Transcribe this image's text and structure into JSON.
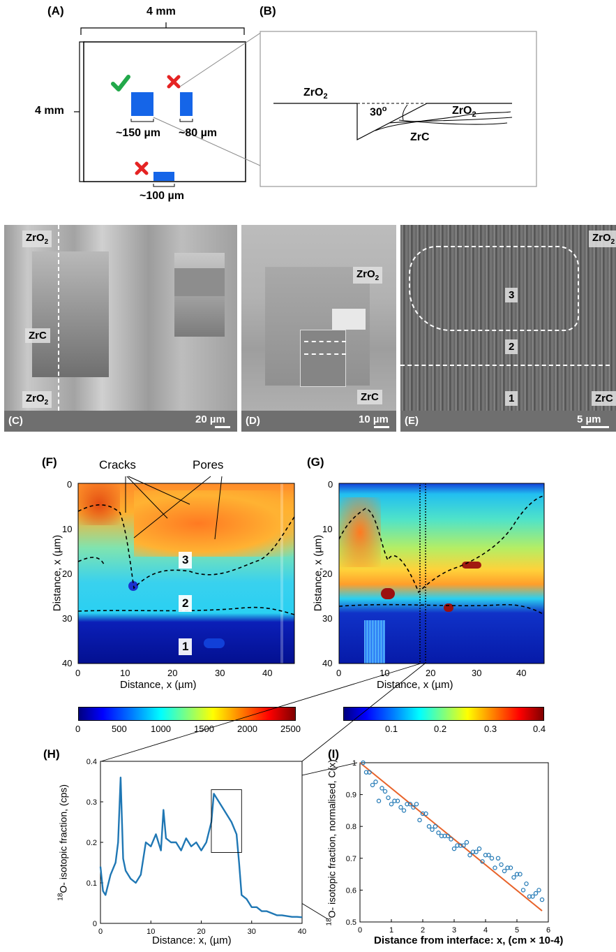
{
  "panel_a": {
    "label": "(A)",
    "width_label": "4 mm",
    "height_label": "4 mm",
    "sizes": [
      "~150 µm",
      "~80 µm",
      "~100 µm"
    ],
    "colors": {
      "trench": "#1565e8",
      "check": "#22a84a",
      "cross": "#e52323"
    }
  },
  "panel_b": {
    "label": "(B)",
    "top_layer": "ZrO",
    "top_sub": "2",
    "angle": "30",
    "angle_sup": "o",
    "inner_layer": "ZrO",
    "inner_sub": "2",
    "base": "ZrC"
  },
  "sem": {
    "c": {
      "label": "(C)",
      "scale": "20 µm",
      "tags": {
        "zro2_top": "ZrO",
        "zrc": "ZrC",
        "zro2_bottom": "ZrO"
      },
      "sub": "2"
    },
    "d": {
      "label": "(D)",
      "scale": "10 µm",
      "tags": {
        "zro2": "ZrO",
        "zrc": "ZrC"
      },
      "sub": "2"
    },
    "e": {
      "label": "(E)",
      "scale": "5 µm",
      "tags": {
        "zro2": "ZrO",
        "zrc": "ZrC",
        "r3": "3",
        "r2": "2",
        "r1": "1"
      },
      "sub": "2"
    }
  },
  "maps": {
    "f": {
      "label": "(F)",
      "annotations": {
        "cracks": "Cracks",
        "pores": "Pores",
        "r3": "3",
        "r2": "2",
        "r1": "1"
      },
      "ylabel_pre": "Distance, x (",
      "ylabel_mu": "µ",
      "ylabel_post": "m)",
      "xlabel_pre": "Distance, x (",
      "xlabel_mu": "µ",
      "xlabel_post": "m)",
      "yticks": [
        "0",
        "10",
        "20",
        "30",
        "40"
      ],
      "xticks": [
        "0",
        "10",
        "20",
        "30",
        "40"
      ],
      "colorbar_ticks": [
        "0",
        "500",
        "1000",
        "1500",
        "2000",
        "2500"
      ]
    },
    "g": {
      "label": "(G)",
      "ylabel_pre": "Distance, x (",
      "ylabel_mu": "µ",
      "ylabel_post": "m)",
      "xlabel_pre": "Distance, x (",
      "xlabel_mu": "µ",
      "xlabel_post": "m)",
      "yticks": [
        "0",
        "10",
        "20",
        "30",
        "40"
      ],
      "xticks": [
        "0",
        "10",
        "20",
        "30",
        "40"
      ],
      "colorbar_ticks": [
        "0.1",
        "0.2",
        "0.3",
        "0.4"
      ]
    }
  },
  "chart_data": [
    {
      "type": "line",
      "panel": "(H)",
      "ylabel_sup": "18",
      "ylabel": "O- isotopic fraction, (cps)",
      "xlabel": "Distance: x, (µm)",
      "xlim": [
        0,
        40
      ],
      "ylim": [
        0,
        0.4
      ],
      "xticks": [
        "0",
        "10",
        "20",
        "30",
        "40"
      ],
      "yticks": [
        "0",
        "0.1",
        "0.2",
        "0.3",
        "0.4"
      ],
      "color": "#1f77b4",
      "x": [
        0,
        0.5,
        1,
        2,
        3,
        3.5,
        4,
        4.5,
        5,
        6,
        7,
        8,
        9,
        10,
        11,
        12,
        12.5,
        13,
        14,
        15,
        16,
        17,
        18,
        19,
        20,
        21,
        22,
        22.5,
        23,
        24,
        25,
        26,
        27,
        27.5,
        28,
        29,
        30,
        31,
        32,
        33,
        34,
        35,
        36,
        37,
        38,
        39,
        40
      ],
      "y": [
        0.14,
        0.08,
        0.07,
        0.12,
        0.15,
        0.2,
        0.36,
        0.16,
        0.13,
        0.11,
        0.1,
        0.12,
        0.2,
        0.19,
        0.22,
        0.18,
        0.28,
        0.21,
        0.2,
        0.2,
        0.18,
        0.21,
        0.19,
        0.2,
        0.18,
        0.2,
        0.25,
        0.32,
        0.31,
        0.29,
        0.27,
        0.25,
        0.22,
        0.15,
        0.07,
        0.06,
        0.04,
        0.04,
        0.03,
        0.03,
        0.025,
        0.02,
        0.02,
        0.018,
        0.016,
        0.016,
        0.015
      ]
    },
    {
      "type": "scatter",
      "panel": "(I)",
      "ylabel_sup": "18",
      "ylabel": "O- isotopic fraction, normalised, C(x)",
      "xlabel": "Distance from interface: x, (cm × 10-4)",
      "xlim": [
        0,
        6
      ],
      "ylim": [
        0.5,
        1
      ],
      "xticks": [
        "0",
        "1",
        "2",
        "3",
        "4",
        "5",
        "6"
      ],
      "yticks": [
        "0.5",
        "0.6",
        "0.7",
        "0.8",
        "0.9",
        "1"
      ],
      "marker_color": "#1f77b4",
      "fit_color": "#e8632a",
      "fit": {
        "x": [
          0,
          5.8
        ],
        "y": [
          1.0,
          0.535
        ]
      },
      "x": [
        0.1,
        0.2,
        0.3,
        0.4,
        0.5,
        0.6,
        0.7,
        0.8,
        0.9,
        1.0,
        1.1,
        1.2,
        1.3,
        1.4,
        1.5,
        1.6,
        1.7,
        1.8,
        1.9,
        2.0,
        2.1,
        2.2,
        2.3,
        2.4,
        2.5,
        2.6,
        2.7,
        2.8,
        2.9,
        3.0,
        3.1,
        3.2,
        3.3,
        3.4,
        3.5,
        3.6,
        3.7,
        3.8,
        3.9,
        4.0,
        4.1,
        4.2,
        4.3,
        4.4,
        4.5,
        4.6,
        4.7,
        4.8,
        4.9,
        5.0,
        5.1,
        5.2,
        5.3,
        5.4,
        5.5,
        5.6,
        5.7,
        5.8
      ],
      "y": [
        1.0,
        0.97,
        0.97,
        0.93,
        0.94,
        0.88,
        0.92,
        0.91,
        0.89,
        0.87,
        0.88,
        0.88,
        0.86,
        0.85,
        0.87,
        0.87,
        0.86,
        0.87,
        0.82,
        0.84,
        0.84,
        0.8,
        0.79,
        0.8,
        0.78,
        0.77,
        0.77,
        0.77,
        0.76,
        0.73,
        0.74,
        0.74,
        0.74,
        0.75,
        0.71,
        0.72,
        0.72,
        0.73,
        0.69,
        0.71,
        0.71,
        0.7,
        0.67,
        0.7,
        0.68,
        0.66,
        0.67,
        0.67,
        0.64,
        0.65,
        0.65,
        0.6,
        0.62,
        0.58,
        0.58,
        0.59,
        0.6,
        0.57
      ]
    }
  ]
}
